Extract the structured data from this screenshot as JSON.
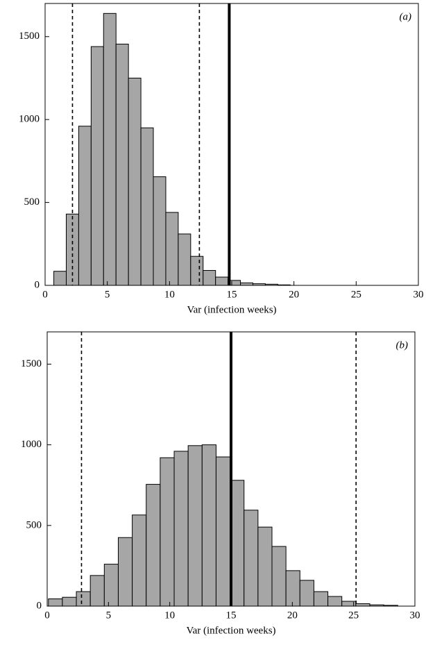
{
  "chart_data": [
    {
      "type": "histogram",
      "annotation": "(a)",
      "x_label": "Var (infection weeks)",
      "bins": [
        0.7,
        1.7,
        2.7,
        3.7,
        4.7,
        5.7,
        6.7,
        7.7,
        8.7,
        9.7,
        10.7,
        11.7,
        12.7,
        13.7,
        14.7,
        15.7,
        16.7,
        17.7,
        18.7,
        19.7
      ],
      "counts": [
        85,
        430,
        960,
        1440,
        1640,
        1455,
        1250,
        950,
        655,
        440,
        310,
        175,
        90,
        50,
        30,
        15,
        10,
        7,
        3
      ],
      "color": "#a6a6a6",
      "xlim": [
        0,
        30
      ],
      "xticks": [
        0,
        5,
        10,
        15,
        20,
        25,
        30
      ],
      "ylim": [
        0,
        1700
      ],
      "yticks": [
        0,
        500,
        1000,
        1500
      ],
      "dashed_lines": [
        2.2,
        12.4
      ],
      "solid_lines": [
        14.8
      ]
    },
    {
      "type": "histogram",
      "annotation": "(b)",
      "x_label": "Var (infection weeks)",
      "bins": [
        0.1,
        1.24,
        2.38,
        3.52,
        4.66,
        5.8,
        6.94,
        8.08,
        9.22,
        10.36,
        11.5,
        12.64,
        13.78,
        14.92,
        16.06,
        17.2,
        18.34,
        19.48,
        20.62,
        21.76,
        22.9,
        24.04,
        25.18,
        26.32,
        27.46,
        28.6
      ],
      "counts": [
        45,
        55,
        90,
        190,
        260,
        425,
        565,
        755,
        920,
        960,
        995,
        1000,
        925,
        780,
        595,
        490,
        370,
        220,
        160,
        90,
        60,
        30,
        15,
        8,
        5
      ],
      "color": "#a6a6a6",
      "xlim": [
        0,
        30
      ],
      "xticks": [
        0,
        5,
        10,
        15,
        20,
        25,
        30
      ],
      "ylim": [
        0,
        1700
      ],
      "yticks": [
        0,
        500,
        1000,
        1500
      ],
      "dashed_lines": [
        2.8,
        25.2
      ],
      "solid_lines": [
        15.0
      ]
    }
  ]
}
